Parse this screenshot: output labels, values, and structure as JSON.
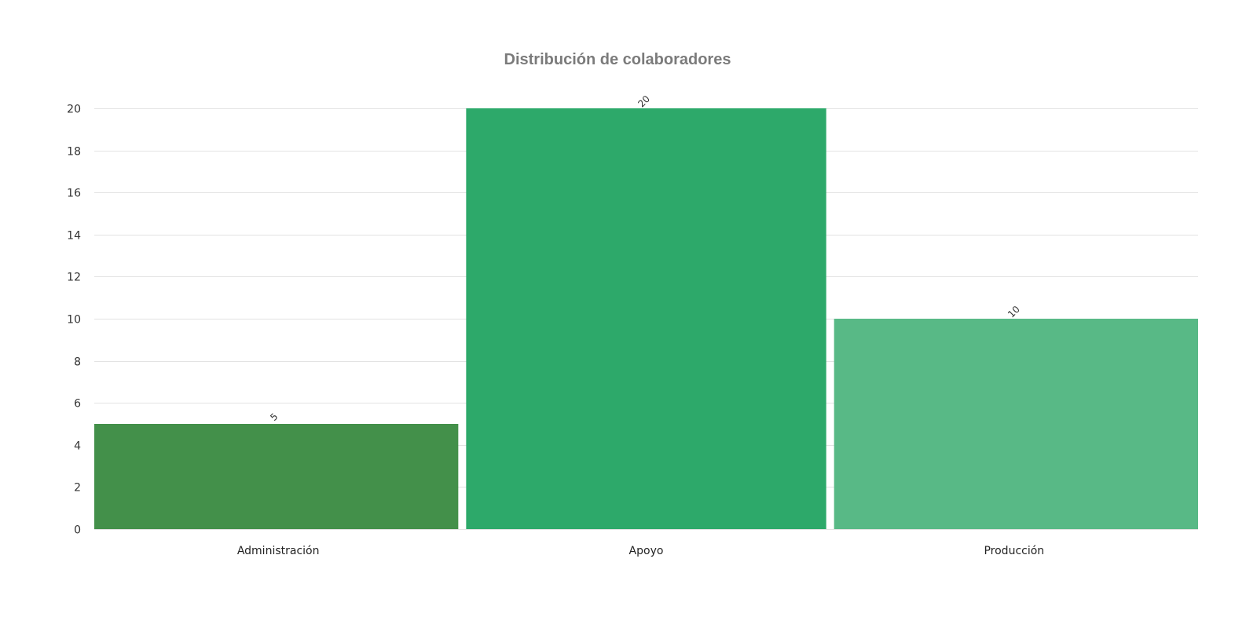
{
  "chart_data": {
    "type": "bar",
    "title": "Distribución de colaboradores",
    "categories": [
      "Administración",
      "Apoyo",
      "Producción"
    ],
    "values": [
      5,
      20,
      10
    ],
    "colors": [
      "#43904a",
      "#2da96a",
      "#58b986"
    ],
    "ylim": [
      0,
      20
    ],
    "yticks": [
      0,
      2,
      4,
      6,
      8,
      10,
      12,
      14,
      16,
      18,
      20
    ],
    "xlabel": "",
    "ylabel": "",
    "grid": true,
    "legend": "none",
    "data_labels": true
  }
}
